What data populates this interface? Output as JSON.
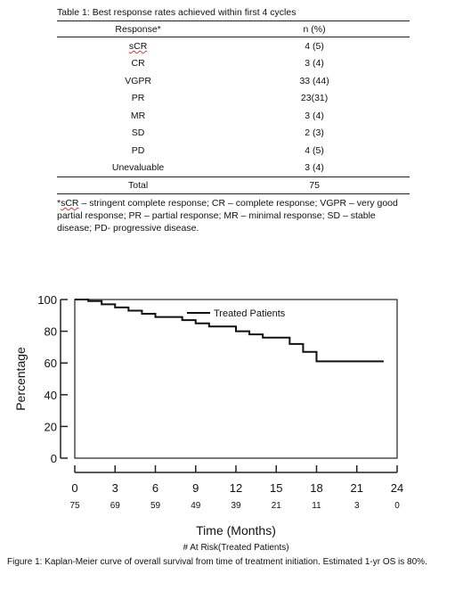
{
  "table": {
    "caption": "Table 1: Best response rates achieved within first 4 cycles",
    "header": {
      "response": "Response*",
      "n": "n (%)"
    },
    "rows": [
      {
        "response": "sCR",
        "n": "4 (5)"
      },
      {
        "response": "CR",
        "n": "3 (4)"
      },
      {
        "response": "VGPR",
        "n": "33 (44)"
      },
      {
        "response": "PR",
        "n": "23(31)"
      },
      {
        "response": "MR",
        "n": "3 (4)"
      },
      {
        "response": "SD",
        "n": "2 (3)"
      },
      {
        "response": "PD",
        "n": "4 (5)"
      },
      {
        "response": "Unevaluable",
        "n": "3 (4)"
      }
    ],
    "total": {
      "label": "Total",
      "value": "75"
    },
    "footnote_prefix": "*",
    "footnote_abbr": "sCR",
    "footnote_rest": " – stringent complete response; CR – complete response; VGPR – very good partial response; PR – partial response; MR – minimal response; SD – stable disease; PD- progressive disease."
  },
  "chart_data": {
    "type": "line",
    "title": "",
    "xlabel": "Time (Months)",
    "ylabel": "Percentage",
    "xlim": [
      0,
      24
    ],
    "ylim": [
      0,
      100
    ],
    "xticks": [
      0,
      3,
      6,
      9,
      12,
      15,
      18,
      21,
      24
    ],
    "yticks": [
      0,
      20,
      40,
      60,
      80,
      100
    ],
    "grid": false,
    "legend": "top-right",
    "series": [
      {
        "name": "Treated Patients",
        "step": true,
        "x": [
          0,
          1,
          2,
          3,
          4,
          5,
          6,
          8,
          9,
          10,
          12,
          13,
          14,
          16,
          17,
          18,
          23
        ],
        "y": [
          100,
          99,
          97,
          95,
          93,
          91,
          89,
          87,
          85,
          83,
          80,
          78,
          76,
          72,
          67,
          61,
          61
        ]
      }
    ],
    "at_risk": {
      "label": "# At Risk(Treated Patients)",
      "times": [
        0,
        3,
        6,
        9,
        12,
        15,
        18,
        21,
        24
      ],
      "counts": [
        75,
        69,
        59,
        49,
        39,
        21,
        11,
        3,
        0
      ]
    }
  },
  "figure_caption": "Figure 1: Kaplan-Meier curve of overall survival from time of treatment initiation. Estimated 1-yr OS is 80%."
}
